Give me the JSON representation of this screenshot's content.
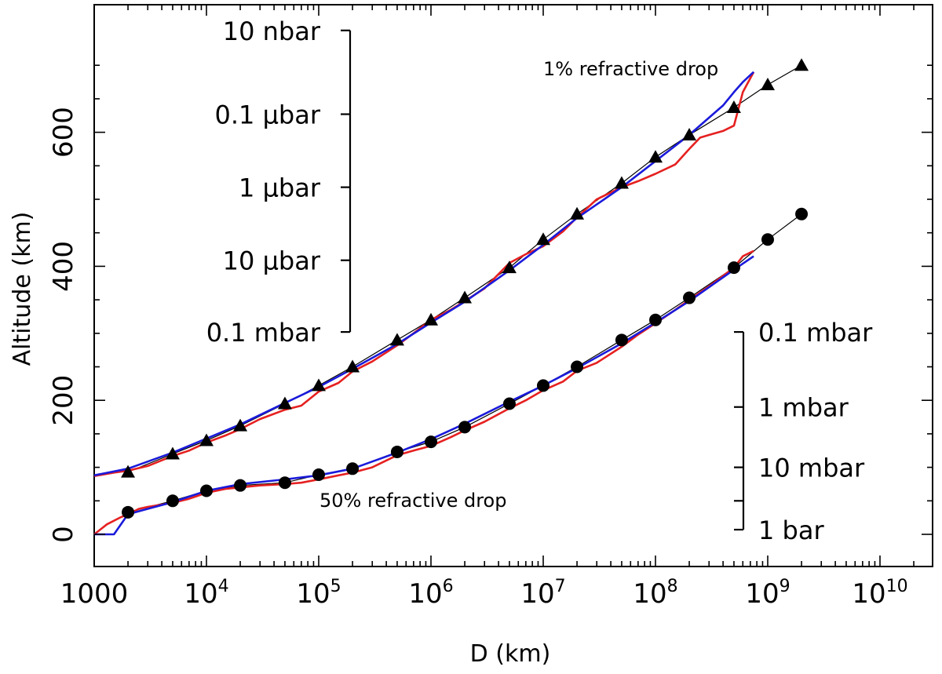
{
  "chart_data": {
    "type": "line",
    "xlabel": "D (km)",
    "ylabel": "Altitude (km)",
    "xscale": "log",
    "xlim": [
      1000,
      20000000000
    ],
    "ylim": [
      -50,
      740
    ],
    "grid": false,
    "x_ticks": [
      {
        "value": 1000,
        "base": "1000",
        "exp": ""
      },
      {
        "value": 10000,
        "base": "10",
        "exp": "4"
      },
      {
        "value": 100000,
        "base": "10",
        "exp": "5"
      },
      {
        "value": 1000000,
        "base": "10",
        "exp": "6"
      },
      {
        "value": 10000000,
        "base": "10",
        "exp": "7"
      },
      {
        "value": 100000000,
        "base": "10",
        "exp": "8"
      },
      {
        "value": 1000000000,
        "base": "10",
        "exp": "9"
      },
      {
        "value": 10000000000,
        "base": "10",
        "exp": "10"
      }
    ],
    "y_ticks": [
      {
        "value": 0,
        "label": "0"
      },
      {
        "value": 200,
        "label": "200"
      },
      {
        "value": 400,
        "label": "400"
      },
      {
        "value": 600,
        "label": "600"
      }
    ],
    "annotations": [
      "1% refractive drop",
      "50% refractive drop"
    ],
    "pressure_scales": [
      {
        "side": "left",
        "ticks": [
          {
            "altitude": 752,
            "label": "10 nbar"
          },
          {
            "altitude": 627,
            "label": "0.1 μbar"
          },
          {
            "altitude": 518,
            "label": "1 μbar"
          },
          {
            "altitude": 409,
            "label": "10 μbar"
          },
          {
            "altitude": 302,
            "label": "0.1 mbar"
          }
        ]
      },
      {
        "side": "right",
        "ticks": [
          {
            "altitude": 302,
            "label": "0.1 mbar"
          },
          {
            "altitude": 190,
            "label": "1 mbar"
          },
          {
            "altitude": 100,
            "label": "10 mbar"
          },
          {
            "altitude": 50,
            "label": ""
          },
          {
            "altitude": 7,
            "label": "1 bar"
          }
        ]
      }
    ],
    "series": [
      {
        "marker": "triangle",
        "x": [
          2000,
          5000,
          10000,
          20000,
          50000,
          100000,
          200000,
          500000,
          1000000,
          2000000,
          5000000,
          10000000,
          20000000,
          50000000,
          100000000,
          200000000,
          500000000,
          1000000000,
          2000000000
        ],
        "y": [
          93,
          120,
          140,
          162,
          195,
          222,
          250,
          290,
          320,
          353,
          398,
          440,
          478,
          524,
          563,
          596,
          637,
          671,
          700
        ]
      },
      {
        "marker": "circle",
        "x": [
          2000,
          5000,
          10000,
          20000,
          50000,
          100000,
          200000,
          500000,
          1000000,
          2000000,
          5000000,
          10000000,
          20000000,
          50000000,
          100000000,
          200000000,
          500000000,
          1000000000,
          2000000000
        ],
        "y": [
          33,
          50,
          65,
          73,
          77,
          89,
          98,
          123,
          138,
          160,
          195,
          222,
          250,
          290,
          320,
          353,
          398,
          440,
          478
        ]
      },
      {
        "color": "#e62020",
        "x": [
          1000,
          1500,
          2000,
          3000,
          5000,
          7000,
          10000,
          15000,
          20000,
          30000,
          50000,
          70000,
          100000,
          150000,
          200000,
          300000,
          500000,
          700000,
          1000000,
          1500000,
          2000000,
          3000000,
          5000000,
          7000000,
          10000000,
          15000000,
          20000000,
          30000000,
          50000000,
          70000000,
          100000000,
          150000000,
          200000000,
          250000000,
          300000000,
          400000000,
          500000000,
          600000000,
          750000000
        ],
        "y": [
          87,
          92,
          95,
          102,
          117,
          125,
          137,
          148,
          157,
          172,
          186,
          192,
          213,
          226,
          243,
          258,
          282,
          300,
          320,
          335,
          348,
          367,
          405,
          418,
          430,
          452,
          473,
          500,
          518,
          527,
          538,
          552,
          575,
          592,
          596,
          602,
          610,
          660,
          690
        ]
      },
      {
        "color": "#1a1adb",
        "x": [
          1000,
          2000,
          5000,
          10000,
          20000,
          50000,
          100000,
          200000,
          500000,
          1000000,
          2000000,
          5000000,
          10000000,
          20000000,
          50000000,
          100000000,
          200000000,
          400000000,
          500000000,
          600000000,
          750000000
        ],
        "y": [
          88,
          98,
          122,
          143,
          164,
          196,
          220,
          247,
          284,
          316,
          347,
          394,
          432,
          472,
          518,
          557,
          596,
          640,
          660,
          675,
          690
        ]
      },
      {
        "color": "#e62020",
        "x": [
          1000,
          1300,
          1700,
          2000,
          2500,
          3000,
          5000,
          7000,
          10000,
          15000,
          20000,
          30000,
          50000,
          70000,
          100000,
          150000,
          200000,
          300000,
          500000,
          700000,
          1000000,
          1500000,
          2000000,
          3000000,
          5000000,
          7000000,
          10000000,
          15000000,
          20000000,
          30000000,
          50000000,
          70000000,
          100000000,
          150000000,
          200000000,
          300000000,
          500000000,
          600000000,
          750000000
        ],
        "y": [
          0,
          15,
          25,
          30,
          38,
          41,
          47,
          53,
          62,
          68,
          70,
          73,
          75,
          77,
          82,
          88,
          92,
          100,
          118,
          125,
          132,
          145,
          155,
          168,
          188,
          200,
          215,
          228,
          244,
          256,
          280,
          298,
          315,
          335,
          350,
          370,
          398,
          415,
          423
        ]
      },
      {
        "color": "#1a1adb",
        "x": [
          1000,
          1500,
          2000,
          3000,
          5000,
          10000,
          20000,
          50000,
          100000,
          200000,
          500000,
          1000000,
          2000000,
          5000000,
          10000000,
          20000000,
          50000000,
          100000000,
          200000000,
          500000000,
          750000000
        ],
        "y": [
          0,
          0,
          30,
          38,
          48,
          65,
          75,
          82,
          88,
          98,
          122,
          142,
          165,
          198,
          222,
          248,
          285,
          316,
          348,
          395,
          415
        ]
      }
    ]
  }
}
